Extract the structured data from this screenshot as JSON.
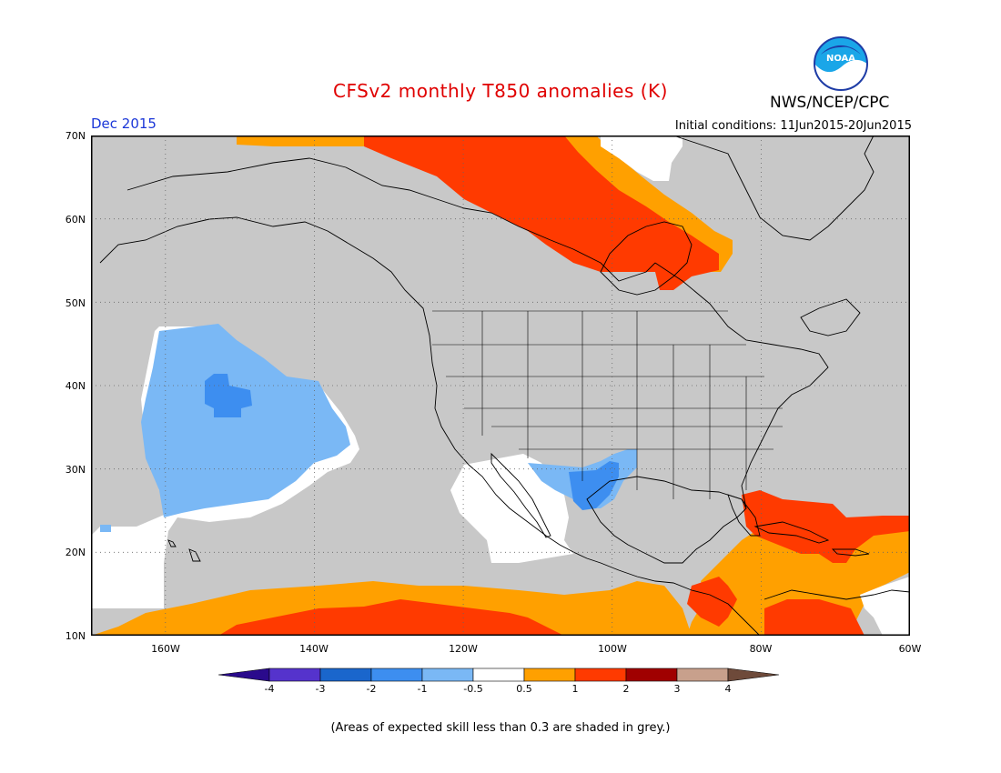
{
  "header": {
    "title": "CFSv2 monthly T850 anomalies (K)",
    "agency": "NWS/NCEP/CPC",
    "logo_text": "NOAA",
    "period": "Dec 2015",
    "initial_conditions": "Initial conditions: 11Jun2015-20Jun2015"
  },
  "map": {
    "projection": "equirectangular",
    "lon_range": [
      -170,
      -60
    ],
    "lat_range": [
      10,
      70
    ],
    "lat_labels": [
      "70N",
      "60N",
      "50N",
      "40N",
      "30N",
      "20N",
      "10N"
    ],
    "lon_labels": [
      "160W",
      "140W",
      "120W",
      "100W",
      "80W",
      "60W"
    ],
    "background_color": "#c8c8c8",
    "grid": "dotted"
  },
  "colorbar": {
    "labels": [
      "-4",
      "-3",
      "-2",
      "-1",
      "-0.5",
      "0.5",
      "1",
      "2",
      "3",
      "4"
    ],
    "colors": [
      "#2a0a8c",
      "#5533cc",
      "#1a66cc",
      "#3d8ef0",
      "#7ab8f5",
      "#ffffff",
      "#ffa000",
      "#ff3a00",
      "#a00000",
      "#c8a08c",
      "#6e4a3a"
    ]
  },
  "footnote": "(Areas of expected skill less than 0.3 are shaded in grey.)",
  "colors": {
    "title": "#e00000",
    "period": "#1c38d8",
    "skill_grey": "#c8c8c8"
  }
}
